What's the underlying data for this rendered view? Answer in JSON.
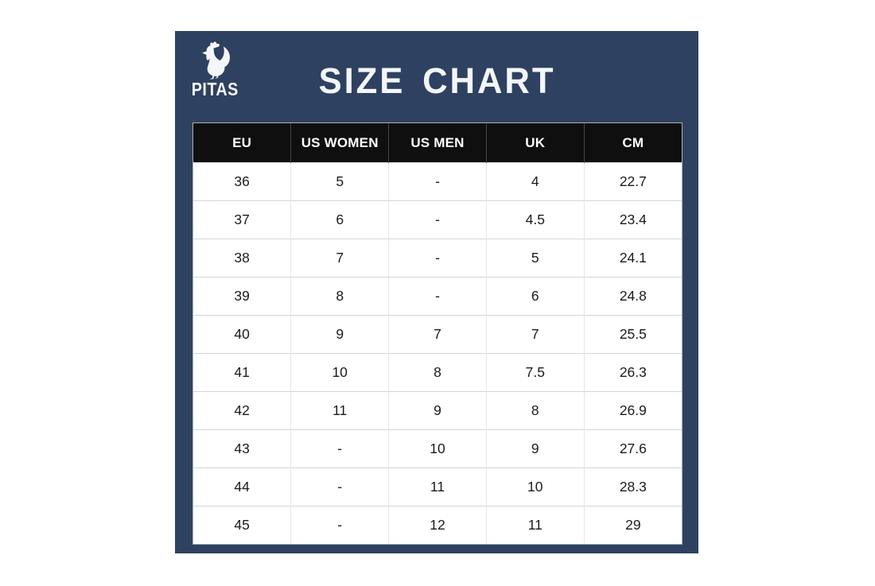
{
  "brand": {
    "name": "PITAS",
    "icon": "rooster-icon"
  },
  "title": "SIZE CHART",
  "chart_data": {
    "type": "table",
    "title": "SIZE CHART",
    "columns": [
      "EU",
      "US WOMEN",
      "US MEN",
      "UK",
      "CM"
    ],
    "rows": [
      [
        "36",
        "5",
        "-",
        "4",
        "22.7"
      ],
      [
        "37",
        "6",
        "-",
        "4.5",
        "23.4"
      ],
      [
        "38",
        "7",
        "-",
        "5",
        "24.1"
      ],
      [
        "39",
        "8",
        "-",
        "6",
        "24.8"
      ],
      [
        "40",
        "9",
        "7",
        "7",
        "25.5"
      ],
      [
        "41",
        "10",
        "8",
        "7.5",
        "26.3"
      ],
      [
        "42",
        "11",
        "9",
        "8",
        "26.9"
      ],
      [
        "43",
        "-",
        "10",
        "9",
        "27.6"
      ],
      [
        "44",
        "-",
        "11",
        "10",
        "28.3"
      ],
      [
        "45",
        "-",
        "12",
        "11",
        "29"
      ]
    ]
  },
  "colors": {
    "panel_bg": "#2e4160",
    "brand_text": "#f4f6f9",
    "title_text": "#f4f6f9",
    "header_bg": "#0f0f0f",
    "header_text": "#ffffff",
    "header_divider": "#474747",
    "body_text": "#1b1b1b",
    "row_border": "#d3d5d9",
    "col_border": "#e5e6e9",
    "table_outline": "#a9afb7",
    "logo_fill": "#f4f6f9",
    "page_bg": "#ffffff"
  }
}
